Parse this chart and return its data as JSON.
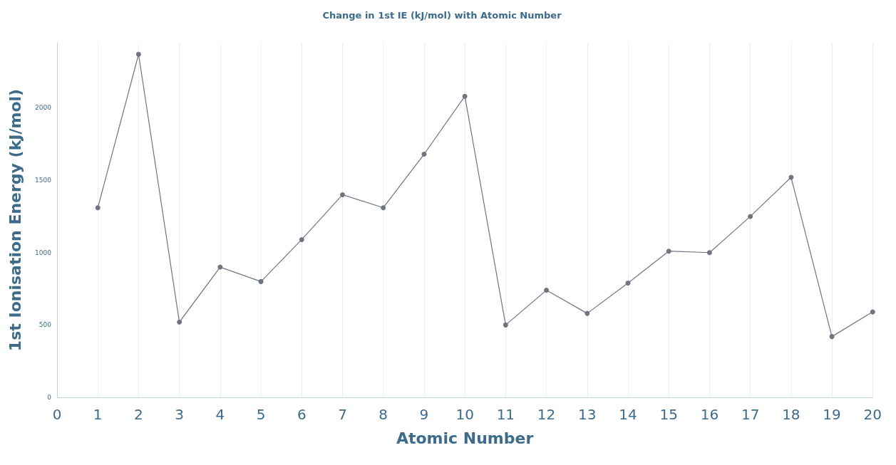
{
  "chart_data": {
    "type": "line",
    "title": "Change in 1st IE (kJ/mol) with Atomic Number",
    "xlabel": "Atomic Number",
    "ylabel": "1st Ionisation Energy (kJ/mol)",
    "x": [
      1,
      2,
      3,
      4,
      5,
      6,
      7,
      8,
      9,
      10,
      11,
      12,
      13,
      14,
      15,
      16,
      17,
      18,
      19,
      20
    ],
    "series": [
      {
        "color": "#6e7480",
        "values": [
          1310,
          2370,
          520,
          900,
          800,
          1090,
          1400,
          1310,
          1680,
          2080,
          500,
          740,
          580,
          790,
          1010,
          1000,
          1250,
          1520,
          420,
          590
        ]
      }
    ],
    "xlim": [
      0,
      20
    ],
    "xticks": [
      0,
      1,
      2,
      3,
      4,
      5,
      6,
      7,
      8,
      9,
      10,
      11,
      12,
      13,
      14,
      15,
      16,
      17,
      18,
      19,
      20
    ],
    "ylim": [
      0,
      2450
    ],
    "yticks": [
      0,
      500,
      1000,
      1500,
      2000
    ],
    "grid": "x",
    "marker": "circle",
    "line_style": "solid"
  }
}
